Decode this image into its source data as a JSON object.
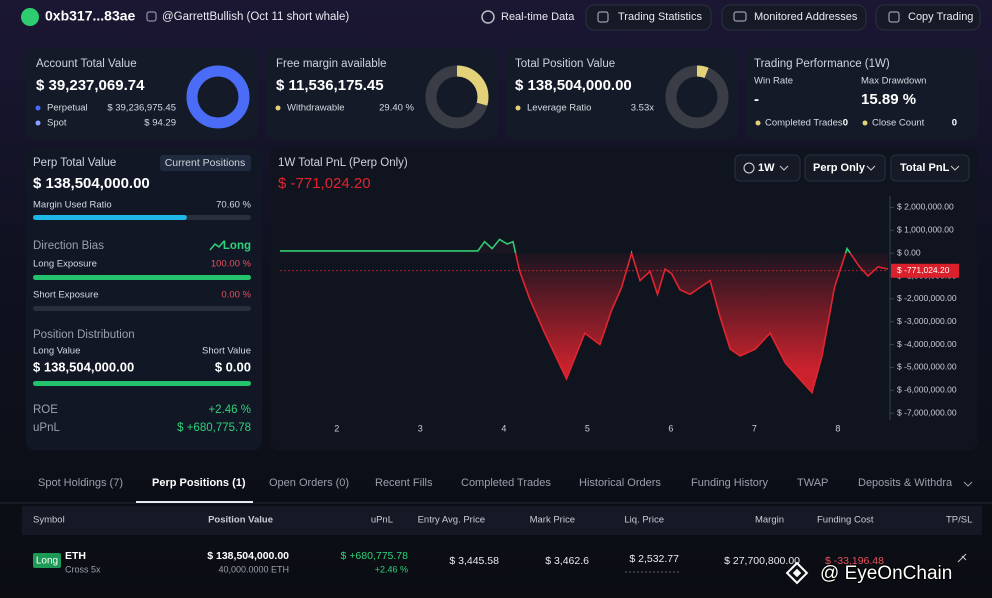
{
  "header": {
    "address": "0xb317...83ae",
    "handle": "@GarrettBullish (Oct 11 short whale)",
    "buttons": [
      "Real-time Data",
      "Trading Statistics",
      "Monitored Addresses",
      "Copy Trading"
    ]
  },
  "cards": [
    {
      "title": "Account Total Value",
      "value": "$ 39,237,069.74",
      "rows": [
        [
          "Perpetual",
          "$ 39,236,975.45"
        ],
        [
          "Spot",
          "$ 94.29"
        ]
      ],
      "donut_percent": 100,
      "donut_color": "#4a6cf7"
    },
    {
      "title": "Free margin available",
      "value": "$ 11,536,175.45",
      "rows": [
        [
          "Withdrawable",
          "29.40 %"
        ]
      ],
      "donut_percent": 29.4,
      "donut_color": "#e3d27a"
    },
    {
      "title": "Total Position Value",
      "value": "$ 138,504,000.00",
      "rows": [
        [
          "Leverage Ratio",
          "3.53x"
        ]
      ],
      "donut_percent": 6,
      "donut_color": "#e3d27a"
    },
    {
      "title": "Trading Performance (1W)",
      "win_label": "Win Rate",
      "win_value": "-",
      "drawdown_label": "Max Drawdown",
      "drawdown_value": "15.89 %",
      "rows": [
        [
          "Completed Trades",
          "0"
        ],
        [
          "Close Count",
          "0"
        ]
      ]
    }
  ],
  "perp_panel": {
    "title": "Perp Total Value",
    "button": "Current Positions",
    "value": "$ 138,504,000.00",
    "margin_label": "Margin Used Ratio",
    "margin_value": "70.60 %",
    "margin_percent": 70.6,
    "bias_label": "Direction Bias",
    "bias": "Long",
    "long_label": "Long Exposure",
    "long_value": "100.00 %",
    "long_percent": 100,
    "short_label": "Short Exposure",
    "short_value": "0.00 %",
    "short_percent": 0,
    "distribution_label": "Position Distribution",
    "long_value_label": "Long Value",
    "short_value_label": "Short Value",
    "long_amount": "$ 138,504,000.00",
    "short_amount": "$ 0.00",
    "roe_label": "ROE",
    "roe": "+2.46 %",
    "upnl_label": "uPnL",
    "upnl": "$ +680,775.78"
  },
  "chart_data": {
    "type": "line",
    "title": "1W Total PnL (Perp Only)",
    "current_label": "$ -771,024.20",
    "current_value": -771024.2,
    "controls": [
      "1W",
      "Perp Only",
      "Total PnL"
    ],
    "x": [
      1.32,
      3.69,
      3.77,
      3.86,
      3.95,
      4.04,
      4.11,
      4.19,
      4.31,
      4.49,
      4.75,
      4.97,
      5.15,
      5.29,
      5.41,
      5.53,
      5.63,
      5.75,
      5.84,
      5.93,
      6.01,
      6.11,
      6.23,
      6.35,
      6.47,
      6.59,
      6.71,
      6.83,
      7.01,
      7.19,
      7.37,
      7.54,
      7.69,
      7.81,
      7.96,
      8.11,
      8.26,
      8.36,
      8.48,
      8.6
    ],
    "values": [
      100000,
      100000,
      500000,
      200000,
      600000,
      400000,
      500000,
      -800000,
      -2000000,
      -3500000,
      -5500000,
      -3500000,
      -4000000,
      -2500000,
      -1500000,
      0,
      -1200000,
      -800000,
      -1800000,
      -700000,
      -900000,
      -1600000,
      -1800000,
      -1500000,
      -1200000,
      -2800000,
      -4200000,
      -4500000,
      -4200000,
      -3500000,
      -4800000,
      -5500000,
      -6100000,
      -4500000,
      -1500000,
      200000,
      -600000,
      -1000000,
      -600000,
      -700000
    ],
    "xlim": [
      1.32,
      8.6
    ],
    "xticks": [
      2,
      3,
      4,
      5,
      6,
      7,
      8
    ],
    "ylim": [
      -7300000,
      2500000
    ],
    "yticks": [
      {
        "value": 2000000,
        "label": "$ 2,000,000.00"
      },
      {
        "value": 1000000,
        "label": "$ 1,000,000.00"
      },
      {
        "value": 0,
        "label": "$ 0.00"
      },
      {
        "value": -1000000,
        "label": "$ -1,000,000.00"
      },
      {
        "value": -2000000,
        "label": "$ -2,000,000.00"
      },
      {
        "value": -3000000,
        "label": "$ -3,000,000.00"
      },
      {
        "value": -4000000,
        "label": "$ -4,000,000.00"
      },
      {
        "value": -5000000,
        "label": "$ -5,000,000.00"
      },
      {
        "value": -6000000,
        "label": "$ -6,000,000.00"
      },
      {
        "value": -7000000,
        "label": "$ -7,000,000.00"
      }
    ],
    "positive_color": "#2ecc71",
    "negative_color": "#e0242f"
  },
  "table": {
    "tabs": [
      "Spot Holdings (7)",
      "Perp Positions (1)",
      "Open Orders (0)",
      "Recent Fills",
      "Completed Trades",
      "Historical Orders",
      "Funding History",
      "TWAP",
      "Deposits & Withdraw"
    ],
    "columns": [
      "Symbol",
      "Position Value",
      "uPnL",
      "Entry Avg. Price",
      "Mark Price",
      "Liq. Price",
      "Margin",
      "Funding Cost",
      "TP/SL"
    ],
    "rows": [
      {
        "side": "Long",
        "symbol": "ETH",
        "mode": "Cross 5x",
        "position_value": "$ 138,504,000.00",
        "position_size": "40,000.0000 ETH",
        "upnl": "$ +680,775.78",
        "upnl_pct": "+2.46 %",
        "entry": "$ 3,445.58",
        "mark": "$ 3,462.6",
        "liq": "$ 2,532.77",
        "margin": "$ 27,700,800.00",
        "funding": "$ -33,196.48"
      }
    ]
  },
  "watermark": "@ EyeOnChain"
}
